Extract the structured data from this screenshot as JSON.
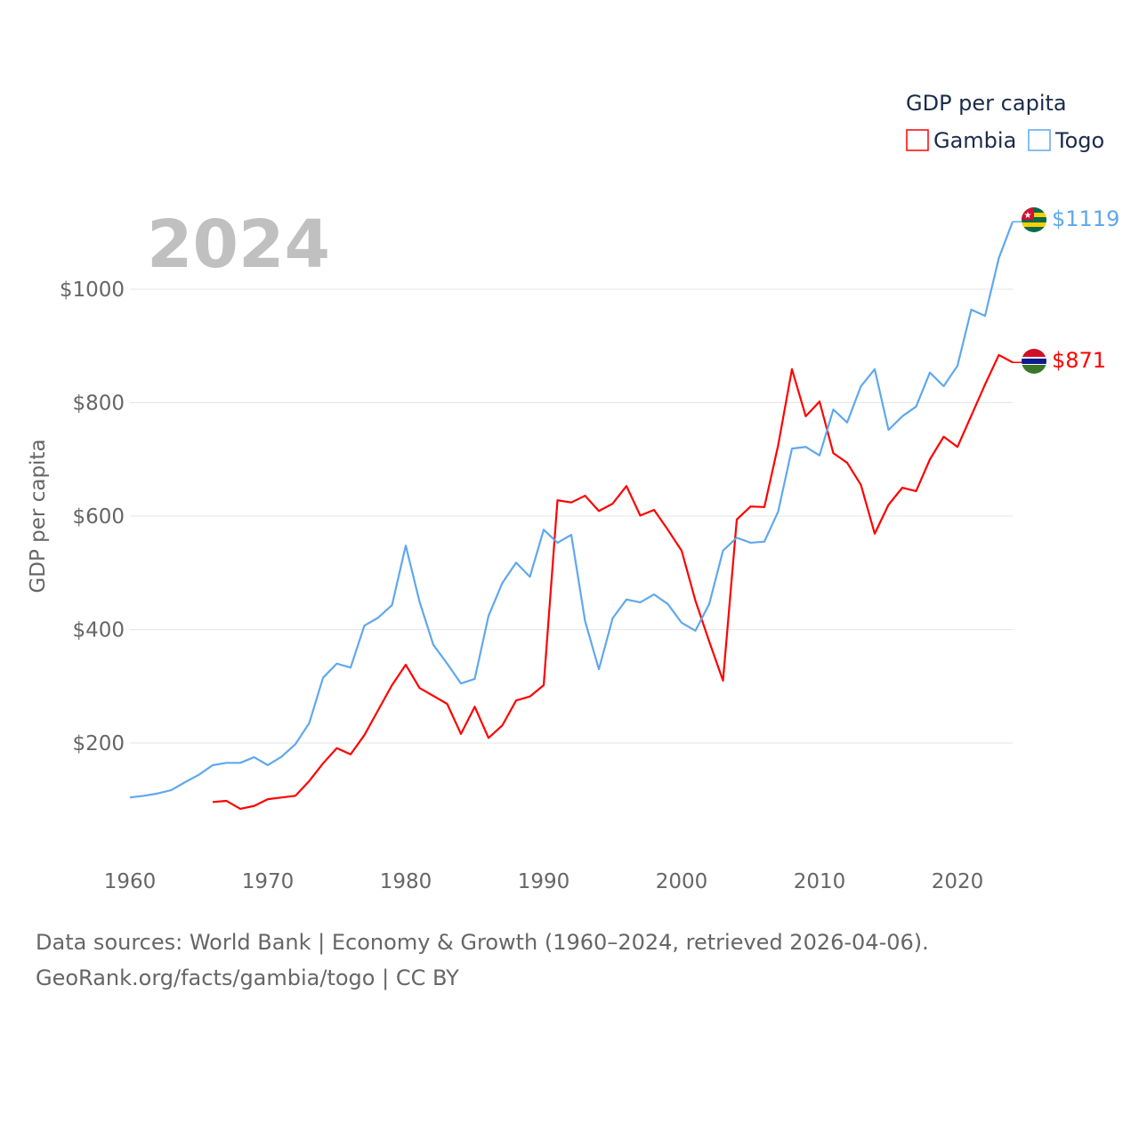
{
  "chart_data": {
    "type": "line",
    "title": "GDP per capita",
    "ylabel": "GDP per capita",
    "xlabel": "",
    "year_label": "2024",
    "xlim": [
      1960,
      2024
    ],
    "ylim": [
      0,
      1150
    ],
    "x_ticks": [
      "1960",
      "1970",
      "1980",
      "1990",
      "2000",
      "2010",
      "2020"
    ],
    "x_tick_values": [
      1960,
      1970,
      1980,
      1990,
      2000,
      2010,
      2020
    ],
    "y_ticks": [
      "$200",
      "$400",
      "$600",
      "$800",
      "$1000"
    ],
    "y_tick_values": [
      200,
      400,
      600,
      800,
      1000
    ],
    "grid": true,
    "legend_placement": "top-right",
    "series": [
      {
        "name": "Gambia",
        "color": "#ff0000",
        "end_label": "$871",
        "start_year": 1966,
        "values": [
          96,
          98,
          84,
          89,
          101,
          104,
          107,
          133,
          164,
          191,
          180,
          214,
          258,
          302,
          338,
          297,
          283,
          269,
          216,
          264,
          209,
          231,
          275,
          282,
          302,
          628,
          624,
          636,
          609,
          622,
          653,
          601,
          611,
          576,
          539,
          451,
          379,
          310,
          594,
          617,
          616,
          725,
          859,
          776,
          802,
          711,
          694,
          655,
          569,
          620,
          650,
          644,
          700,
          740,
          722,
          777,
          832,
          884,
          871
        ]
      },
      {
        "name": "Togo",
        "color": "#5fa8ee",
        "end_label": "$1119",
        "start_year": 1960,
        "values": [
          104,
          107,
          111,
          117,
          131,
          144,
          161,
          165,
          165,
          175,
          161,
          176,
          198,
          235,
          315,
          340,
          333,
          407,
          421,
          443,
          548,
          449,
          373,
          340,
          305,
          313,
          424,
          482,
          518,
          493,
          576,
          553,
          567,
          415,
          330,
          420,
          453,
          448,
          462,
          445,
          412,
          398,
          445,
          539,
          562,
          553,
          555,
          608,
          719,
          722,
          707,
          788,
          765,
          829,
          859,
          752,
          776,
          793,
          853,
          829,
          865,
          964,
          953,
          1055,
          1119
        ]
      }
    ]
  },
  "footer": {
    "line1": "Data sources: World Bank | Economy & Growth (1960–2024, retrieved 2026-04-06).",
    "line2": "GeoRank.org/facts/gambia/togo | CC BY"
  }
}
